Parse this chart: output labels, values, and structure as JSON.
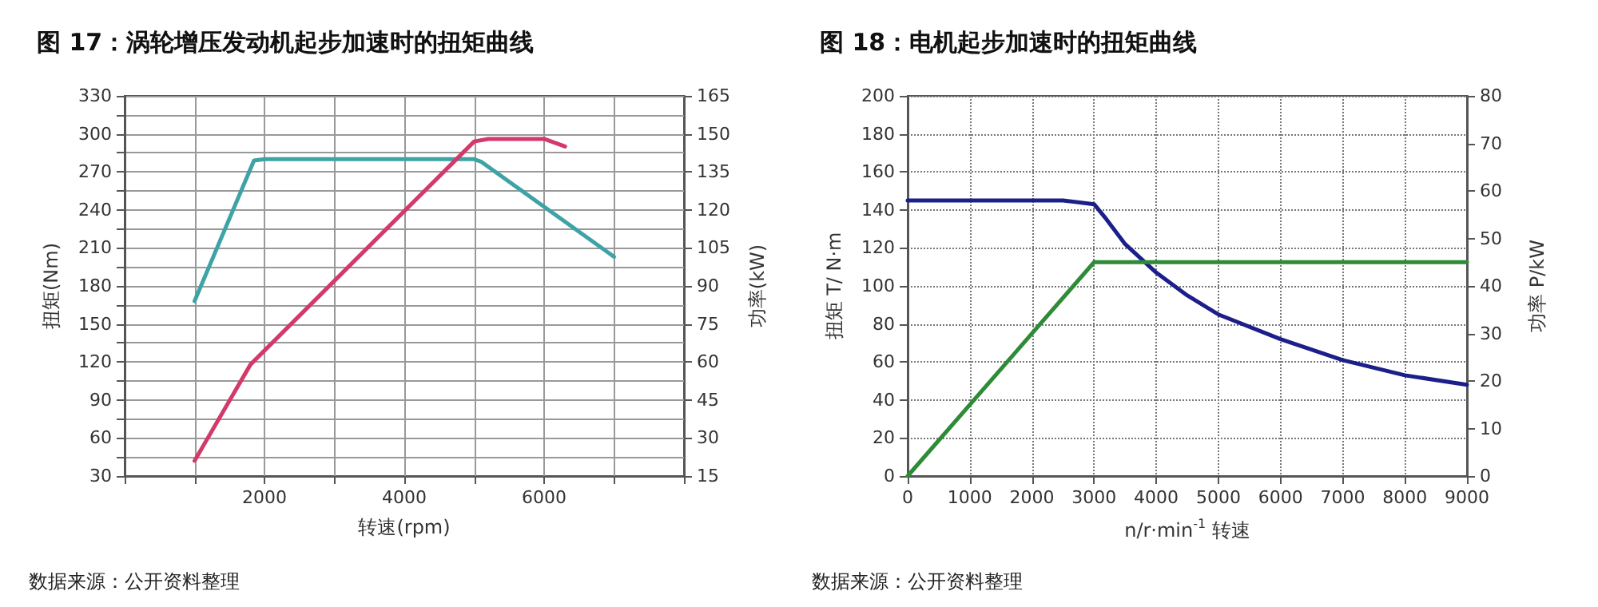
{
  "chart_data": [
    {
      "type": "line",
      "title": "图 17：涡轮增压发动机起步加速时的扭矩曲线",
      "xlabel": "转速(rpm)",
      "ylabel": "扭矩(Nm)",
      "y2label": "功率(kW)",
      "series": [
        {
          "color": "#3fa3a6",
          "x": [
            1000,
            1850,
            2000,
            5000,
            5100,
            7000
          ],
          "values": [
            168,
            279,
            280,
            280,
            278,
            203
          ]
        },
        {
          "color": "#d23a6a",
          "axis": "y2",
          "x": [
            1000,
            1800,
            5000,
            5200,
            6000,
            6300
          ],
          "values": [
            21,
            59,
            147,
            148,
            148,
            145
          ]
        }
      ],
      "xlim": [
        0,
        8000
      ],
      "xticks": [
        {
          "value": 0,
          "label": null
        },
        {
          "value": 1000,
          "label": null
        },
        2000,
        {
          "value": 3000,
          "label": null
        },
        4000,
        {
          "value": 5000,
          "label": null
        },
        6000,
        {
          "value": 7000,
          "label": null
        },
        {
          "value": 8000,
          "label": null
        }
      ],
      "ylim": [
        30,
        330
      ],
      "yticks": [
        30,
        {
          "value": 45,
          "label": null
        },
        60,
        {
          "value": 75,
          "label": null
        },
        90,
        {
          "value": 105,
          "label": null
        },
        120,
        {
          "value": 135,
          "label": null
        },
        150,
        {
          "value": 165,
          "label": null
        },
        180,
        {
          "value": 195,
          "label": null
        },
        210,
        {
          "value": 225,
          "label": null
        },
        240,
        {
          "value": 255,
          "label": null
        },
        270,
        {
          "value": 285,
          "label": null
        },
        300,
        {
          "value": 315,
          "label": null
        },
        330
      ],
      "y2lim": [
        15,
        165
      ],
      "y2ticks": [
        15,
        30,
        45,
        60,
        75,
        90,
        105,
        120,
        135,
        150,
        165
      ],
      "grid": true,
      "marker": "none",
      "line_style": "solid",
      "annotations": [
        "数据来源：公开资料整理"
      ]
    },
    {
      "type": "line",
      "title": "图 18：电机起步加速时的扭矩曲线",
      "xlabel": "n/r·min$^{-1}$ 转速",
      "ylabel": "扭矩 T/ N·m",
      "y2label": "功率 P/kW",
      "series": [
        {
          "color": "#1c1f8a",
          "x": [
            0,
            2500,
            3000,
            3200,
            3500,
            4000,
            4500,
            5000,
            6000,
            7000,
            8000,
            9000
          ],
          "values": [
            145,
            145,
            143,
            135,
            122,
            107,
            95,
            85,
            72,
            61,
            53,
            48
          ]
        },
        {
          "color": "#2e8b36",
          "axis": "y2",
          "x": [
            0,
            3000,
            9000
          ],
          "values": [
            0,
            45,
            45
          ]
        }
      ],
      "xlim": [
        0,
        9000
      ],
      "xticks": [
        0,
        1000,
        2000,
        3000,
        4000,
        5000,
        6000,
        7000,
        8000,
        9000
      ],
      "ylim": [
        0,
        200
      ],
      "yticks": [
        0,
        20,
        40,
        60,
        80,
        100,
        120,
        140,
        160,
        180,
        200
      ],
      "y2lim": [
        0,
        80
      ],
      "y2ticks": [
        0,
        10,
        20,
        30,
        40,
        50,
        60,
        70,
        80
      ],
      "grid": true,
      "marker": "none",
      "line_style": "solid",
      "annotations": [
        "数据来源：公开资料整理"
      ]
    }
  ]
}
